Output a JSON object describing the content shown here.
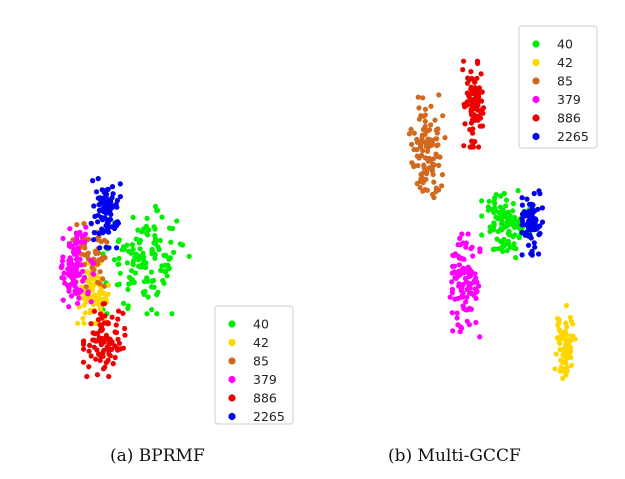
{
  "captions": {
    "a": "(a) BPRMF",
    "b": "(b) Multi-GCCF"
  },
  "chart_data": [
    {
      "type": "scatter",
      "title": "",
      "caption": "(a) BPRMF",
      "legend": {
        "placement": "bottom-right"
      },
      "series": [
        {
          "name": "40",
          "color": "#00ee00",
          "clusters": [
            {
              "center": [
                -2.2,
                -0.9
              ],
              "spread": [
                1.45,
                1.25
              ],
              "count": 130
            }
          ]
        },
        {
          "name": "42",
          "color": "#ffd700",
          "clusters": [
            {
              "center": [
                -4.2,
                -1.75
              ],
              "spread": [
                0.55,
                0.7
              ],
              "count": 90
            }
          ]
        },
        {
          "name": "85",
          "color": "#d2691e",
          "clusters": [
            {
              "center": [
                -4.25,
                -0.9
              ],
              "spread": [
                0.75,
                0.85
              ],
              "count": 55
            }
          ]
        },
        {
          "name": "379",
          "color": "#ff00ff",
          "clusters": [
            {
              "center": [
                -4.8,
                -1.05
              ],
              "spread": [
                0.6,
                0.95
              ],
              "count": 95
            }
          ]
        },
        {
          "name": "886",
          "color": "#ee0000",
          "clusters": [
            {
              "center": [
                -3.75,
                -2.95
              ],
              "spread": [
                0.7,
                0.85
              ],
              "count": 95
            }
          ]
        },
        {
          "name": "2265",
          "color": "#0000ee",
          "clusters": [
            {
              "center": [
                -3.7,
                0.35
              ],
              "spread": [
                0.5,
                0.85
              ],
              "count": 85
            }
          ]
        }
      ]
    },
    {
      "type": "scatter",
      "title": "",
      "caption": "(b) Multi-GCCF",
      "legend": {
        "placement": "top-right"
      },
      "series": [
        {
          "name": "40",
          "color": "#00ee00",
          "clusters": [
            {
              "center": [
                0.0,
                0.1
              ],
              "spread": [
                0.8,
                0.85
              ],
              "count": 110
            }
          ]
        },
        {
          "name": "42",
          "color": "#ffd700",
          "clusters": [
            {
              "center": [
                2.2,
                -3.0
              ],
              "spread": [
                0.35,
                0.85
              ],
              "count": 75
            }
          ]
        },
        {
          "name": "85",
          "color": "#d2691e",
          "clusters": [
            {
              "center": [
                -2.9,
                1.85
              ],
              "spread": [
                0.6,
                1.35
              ],
              "count": 110
            }
          ]
        },
        {
          "name": "379",
          "color": "#ff00ff",
          "clusters": [
            {
              "center": [
                -1.5,
                -1.55
              ],
              "spread": [
                0.5,
                1.2
              ],
              "count": 110
            }
          ]
        },
        {
          "name": "886",
          "color": "#ee0000",
          "clusters": [
            {
              "center": [
                -1.2,
                3.1
              ],
              "spread": [
                0.35,
                1.0
              ],
              "count": 100
            }
          ]
        },
        {
          "name": "2265",
          "color": "#0000ee",
          "clusters": [
            {
              "center": [
                1.0,
                0.05
              ],
              "spread": [
                0.35,
                0.75
              ],
              "count": 80
            }
          ]
        }
      ]
    }
  ]
}
